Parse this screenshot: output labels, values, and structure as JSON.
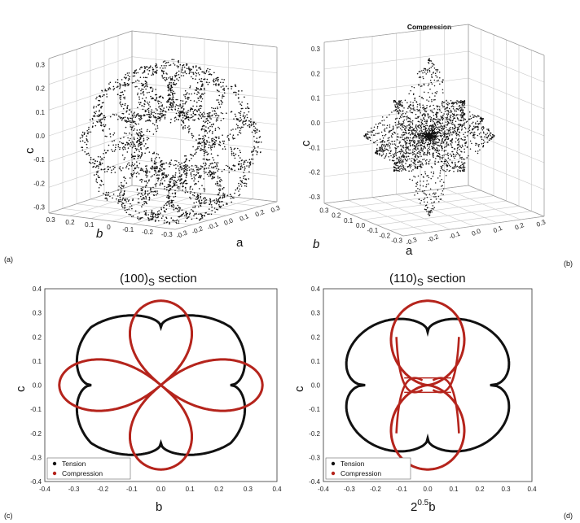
{
  "panels": [
    {
      "label": "(a)",
      "xlabel": "a",
      "ylabel": "b",
      "zlabel": "c"
    },
    {
      "label": "(b)",
      "title": "Compression",
      "xlabel": "a",
      "ylabel": "b",
      "zlabel": "c"
    },
    {
      "label": "(c)",
      "title": "(100)",
      "title_sub": "S",
      "title_rest": " section",
      "xlabel": "b",
      "ylabel": "c"
    },
    {
      "label": "(d)",
      "title": "(110)",
      "title_sub": "S",
      "title_rest": " section",
      "xlabel_base": "2",
      "xlabel_sup": "0.5",
      "xlabel_rest": "b",
      "ylabel": "c"
    }
  ],
  "ticks_3d": {
    "c_a": [
      "0.3",
      "0.2",
      "0.1",
      "0.0",
      "-0.1",
      "-0.2",
      "-0.3"
    ],
    "b_a": [
      "0.3",
      "0.2",
      "0.1",
      "0",
      "-0.1",
      "-0.2",
      "-0.3"
    ],
    "a_a": [
      "-0.3",
      "-0.2",
      "-0.1",
      "0.0",
      "0.1",
      "0.2",
      "0.3"
    ],
    "c_b": [
      "0.3",
      "0.2",
      "0.1",
      "0.0",
      "-0.1",
      "-0.2",
      "-0.3"
    ],
    "b_b": [
      "0.3",
      "0.2",
      "0.1",
      "0.0",
      "-0.1",
      "-0.2",
      "-0.3"
    ],
    "a_b": [
      "-0.3",
      "-0.2",
      "-0.1",
      "0.0",
      "0.1",
      "0.2",
      "0.3"
    ]
  },
  "ticks_2d": [
    "-0.4",
    "-0.3",
    "-0.2",
    "-0.1",
    "0.0",
    "0.1",
    "0.2",
    "0.3",
    "0.4"
  ],
  "legend": {
    "tension": "Tension",
    "compression": "Compression"
  },
  "colors": {
    "tension": "#111111",
    "compression": "#b5241c",
    "grid": "#c8c8c8"
  },
  "chart_data": [
    {
      "panel": "(a)",
      "type": "scatter",
      "description_kind": "3d point cloud, tension surface",
      "xlabel": "a",
      "ylabel": "b",
      "zlabel": "c",
      "xlim": [
        -0.3,
        0.3
      ],
      "ylim": [
        -0.3,
        0.3
      ],
      "zlim": [
        -0.3,
        0.3
      ]
    },
    {
      "panel": "(b)",
      "type": "scatter",
      "title": "Compression",
      "xlabel": "a",
      "ylabel": "b",
      "zlabel": "c",
      "xlim": [
        -0.3,
        0.3
      ],
      "ylim": [
        -0.3,
        0.3
      ],
      "zlim": [
        -0.3,
        0.3
      ]
    },
    {
      "panel": "(c)",
      "type": "line",
      "xlabel": "b",
      "ylabel": "c",
      "xlim": [
        -0.4,
        0.4
      ],
      "ylim": [
        -0.4,
        0.4
      ],
      "series": [
        {
          "name": "Tension",
          "shape": "four-lobed",
          "lobe_directions_deg": [
            45,
            135,
            225,
            315
          ],
          "max_r": 0.34,
          "min_r": 0.24
        },
        {
          "name": "Compression",
          "shape": "four-petal",
          "petal_directions_deg": [
            0,
            90,
            180,
            270
          ],
          "max_r": 0.35
        }
      ]
    },
    {
      "panel": "(d)",
      "type": "line",
      "xlabel": "2^0.5 b",
      "ylabel": "c",
      "xlim": [
        -0.4,
        0.4
      ],
      "ylim": [
        -0.4,
        0.4
      ],
      "series": [
        {
          "name": "Tension",
          "max_x": 0.35,
          "max_y": 0.3
        },
        {
          "name": "Compression",
          "vertical_extent": 0.35,
          "horizontal_extent": 0.12
        }
      ]
    }
  ]
}
